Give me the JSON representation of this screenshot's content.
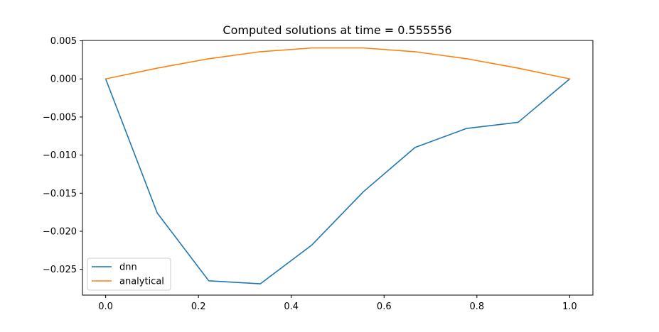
{
  "chart_data": {
    "type": "line",
    "title": "Computed solutions at time = 0.555556",
    "xlabel": "",
    "ylabel": "",
    "xlim": [
      -0.05,
      1.05
    ],
    "ylim": [
      -0.02838,
      0.00505
    ],
    "x_ticks": [
      0.0,
      0.2,
      0.4,
      0.6,
      0.8,
      1.0
    ],
    "x_tick_labels": [
      "0.0",
      "0.2",
      "0.4",
      "0.6",
      "0.8",
      "1.0"
    ],
    "y_ticks": [
      0.005,
      0.0,
      -0.005,
      -0.01,
      -0.015,
      -0.02,
      -0.025
    ],
    "y_tick_labels": [
      "0.005",
      "0.000",
      "−0.005",
      "−0.010",
      "−0.015",
      "−0.020",
      "−0.025"
    ],
    "grid": false,
    "legend_position": "lower-left",
    "x": [
      0.0,
      0.1111,
      0.2222,
      0.3333,
      0.4444,
      0.5556,
      0.6667,
      0.7778,
      0.8889,
      1.0
    ],
    "series": [
      {
        "name": "dnn",
        "color": "#1f77b4",
        "values": [
          0.0,
          -0.0176,
          -0.0265,
          -0.0269,
          -0.0218,
          -0.0148,
          -0.009,
          -0.0065,
          -0.0057,
          0.0
        ]
      },
      {
        "name": "analytical",
        "color": "#ff7f0e",
        "values": [
          0.0,
          0.00141,
          0.00265,
          0.00357,
          0.00406,
          0.00406,
          0.00357,
          0.00265,
          0.00141,
          0.0
        ]
      }
    ]
  }
}
